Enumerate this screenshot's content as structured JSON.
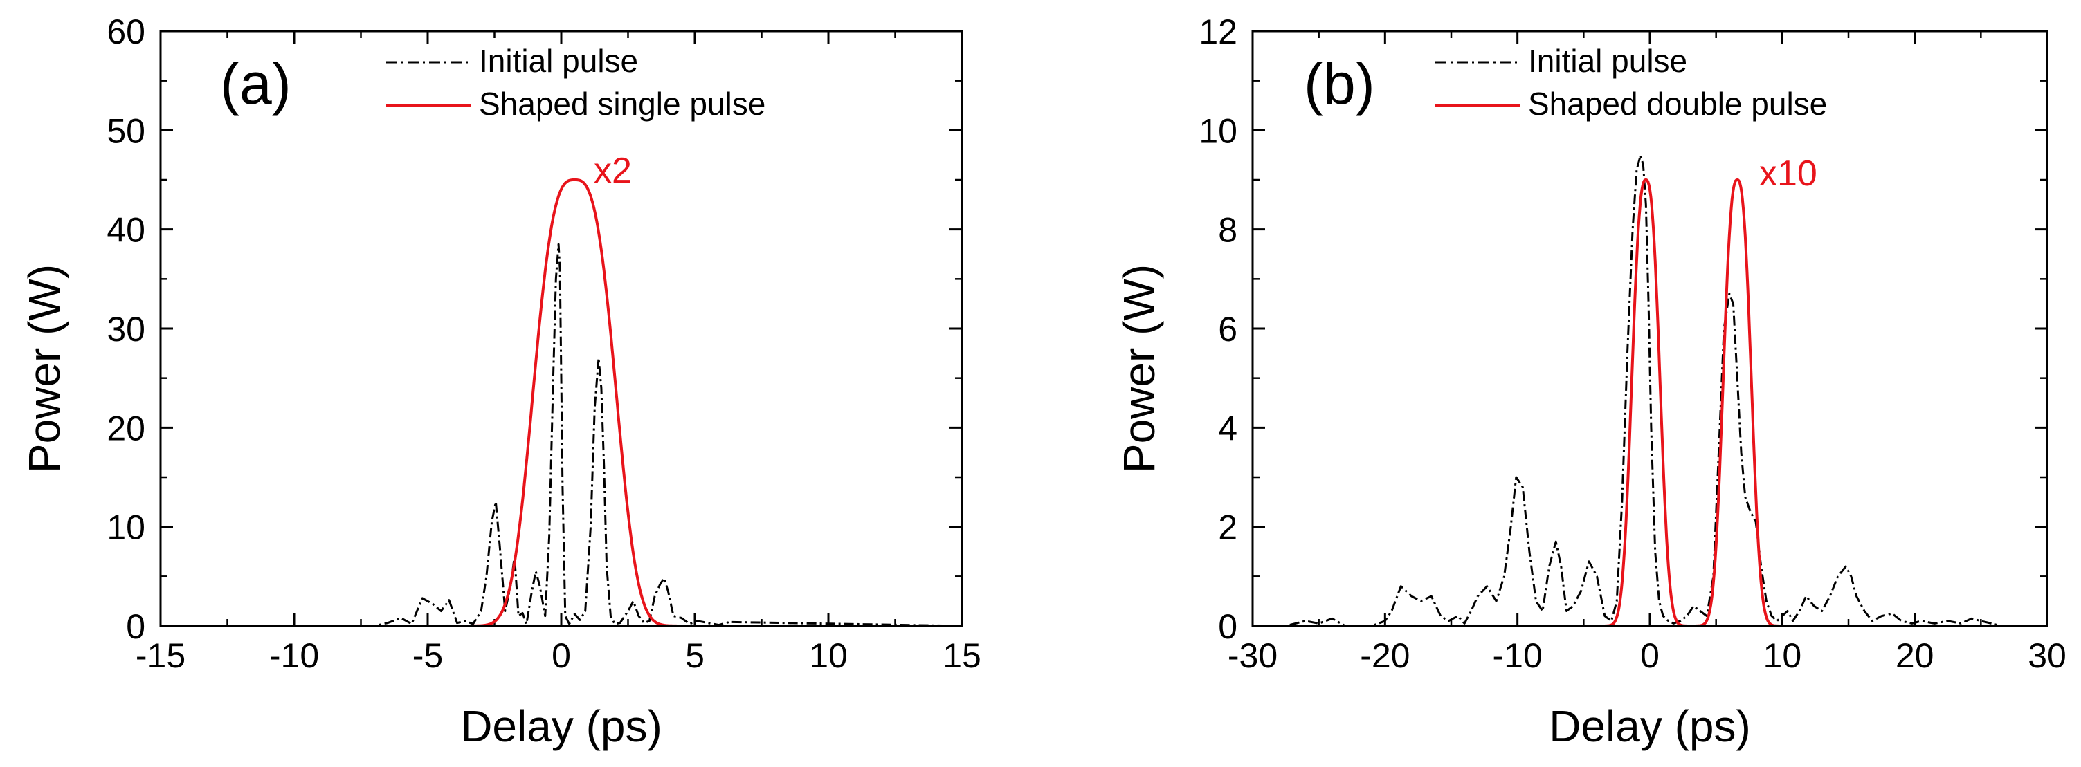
{
  "chart_data": [
    {
      "type": "line",
      "panel_label": "(a)",
      "xlabel": "Delay (ps)",
      "ylabel": "Power (W)",
      "xlim": [
        -15,
        15
      ],
      "ylim": [
        0,
        60
      ],
      "xticks": [
        -15,
        -10,
        -5,
        0,
        5,
        10,
        15
      ],
      "yticks": [
        0,
        10,
        20,
        30,
        40,
        50,
        60
      ],
      "xtick_labels": [
        "-15",
        "-10",
        "-5",
        "0",
        "5",
        "10",
        "15"
      ],
      "ytick_labels": [
        "0",
        "10",
        "20",
        "30",
        "40",
        "50",
        "60"
      ],
      "grid": false,
      "legend": "top",
      "annotation": {
        "text": "x2",
        "x": 2.7,
        "y": 45,
        "color": "#e8141b"
      },
      "series": [
        {
          "name": "Initial pulse",
          "color": "#000000",
          "style": "dashdot",
          "x": [
            -15,
            -7,
            -6.5,
            -6,
            -5.6,
            -5.2,
            -4.8,
            -4.5,
            -4.2,
            -3.9,
            -3.6,
            -3.3,
            -3.0,
            -2.8,
            -2.6,
            -2.45,
            -2.3,
            -2.1,
            -1.9,
            -1.75,
            -1.6,
            -1.45,
            -1.3,
            -1.1,
            -0.95,
            -0.8,
            -0.6,
            -0.45,
            -0.3,
            -0.2,
            -0.1,
            -0.05,
            0.05,
            0.15,
            0.3,
            0.5,
            0.7,
            0.9,
            1.1,
            1.25,
            1.4,
            1.5,
            1.6,
            1.7,
            1.85,
            2.0,
            2.2,
            2.5,
            2.7,
            2.9,
            3.1,
            3.3,
            3.5,
            3.7,
            3.85,
            4.0,
            4.2,
            4.5,
            4.8,
            5.1,
            5.5,
            5.9,
            6.3,
            15
          ],
          "values": [
            0,
            0,
            0.3,
            0.8,
            0.2,
            2.8,
            2.2,
            1.5,
            2.6,
            0.3,
            0.5,
            0.2,
            1.5,
            5.0,
            10.5,
            12.5,
            8.0,
            1.5,
            4.0,
            7.0,
            1.0,
            1.3,
            0.2,
            3.5,
            5.5,
            4.0,
            1.0,
            9.0,
            25.0,
            35.0,
            38.5,
            36.0,
            14.0,
            1.0,
            0.2,
            1.2,
            0.6,
            1.5,
            10.0,
            22.0,
            27.0,
            24.0,
            16.0,
            6.0,
            1.0,
            0.2,
            0.3,
            1.5,
            2.5,
            1.0,
            0.3,
            0.5,
            3.0,
            4.2,
            4.8,
            3.5,
            1.0,
            0.8,
            0.2,
            0.5,
            0.3,
            0.1,
            0.4,
            0
          ]
        },
        {
          "name": "Shaped single pulse",
          "color": "#e8141b",
          "style": "solid",
          "function": "flattened-gaussian",
          "peak": 45,
          "center": 0.5,
          "width": 1.8,
          "order": 1.5,
          "xrange": [
            -15,
            15
          ]
        }
      ]
    },
    {
      "type": "line",
      "panel_label": "(b)",
      "xlabel": "Delay (ps)",
      "ylabel": "Power (W)",
      "xlim": [
        -30,
        30
      ],
      "ylim": [
        0,
        12
      ],
      "xticks": [
        -30,
        -20,
        -10,
        0,
        10,
        20,
        30
      ],
      "yticks": [
        0,
        2,
        4,
        6,
        8,
        10,
        12
      ],
      "xtick_labels": [
        "-30",
        "-20",
        "-10",
        "0",
        "10",
        "20",
        "30"
      ],
      "ytick_labels": [
        "0",
        "2",
        "4",
        "6",
        "8",
        "10",
        "12"
      ],
      "grid": false,
      "legend": "top",
      "annotation": {
        "text": "x10",
        "x": 8.7,
        "y": 9.0,
        "color": "#e8141b"
      },
      "series": [
        {
          "name": "Initial pulse",
          "color": "#000000",
          "style": "dashdot",
          "x": [
            -30,
            -27.5,
            -26,
            -25,
            -24,
            -23,
            -21,
            -20,
            -19.5,
            -18.8,
            -18,
            -17.3,
            -16.5,
            -15.8,
            -15.2,
            -14.5,
            -14,
            -13.5,
            -13,
            -12.3,
            -11.6,
            -11,
            -10.5,
            -10.1,
            -9.6,
            -9.1,
            -8.6,
            -8.1,
            -7.6,
            -7.1,
            -6.7,
            -6.3,
            -5.8,
            -5.2,
            -4.6,
            -4.0,
            -3.4,
            -2.9,
            -2.5,
            -2.1,
            -1.7,
            -1.3,
            -1.0,
            -0.7,
            -0.5,
            -0.3,
            -0.1,
            0.1,
            0.4,
            0.7,
            1.0,
            1.4,
            1.8,
            2.3,
            2.8,
            3.3,
            3.8,
            4.3,
            4.8,
            5.2,
            5.6,
            6.0,
            6.3,
            6.6,
            6.9,
            7.2,
            7.6,
            8.0,
            8.4,
            8.8,
            9.2,
            9.6,
            10.0,
            10.4,
            10.8,
            11.3,
            11.8,
            12.4,
            13.0,
            13.6,
            14.2,
            14.8,
            15.2,
            15.6,
            16.2,
            16.8,
            17.5,
            18.3,
            19.0,
            19.8,
            20.5,
            21.5,
            22.5,
            23.5,
            24.3,
            25.0,
            25.8,
            26.5,
            30
          ],
          "values": [
            0,
            0,
            0.1,
            0.05,
            0.15,
            0,
            0,
            0.1,
            0.3,
            0.8,
            0.6,
            0.5,
            0.6,
            0.2,
            0.1,
            0.2,
            0.05,
            0.3,
            0.6,
            0.8,
            0.5,
            1.0,
            2.0,
            3.0,
            2.8,
            1.5,
            0.5,
            0.3,
            1.2,
            1.7,
            1.2,
            0.3,
            0.4,
            0.7,
            1.3,
            1.0,
            0.2,
            0.1,
            0.5,
            2.5,
            5.5,
            8.0,
            9.2,
            9.5,
            9.3,
            8.5,
            6.5,
            4.0,
            1.5,
            0.5,
            0.2,
            0.1,
            0.05,
            0.1,
            0.2,
            0.4,
            0.3,
            0.2,
            1.0,
            3.5,
            6.0,
            6.7,
            6.5,
            5.0,
            3.5,
            2.6,
            2.3,
            2.1,
            1.2,
            0.5,
            0.2,
            0.1,
            0.2,
            0.3,
            0.1,
            0.3,
            0.6,
            0.4,
            0.3,
            0.6,
            1.0,
            1.2,
            1.0,
            0.6,
            0.3,
            0.1,
            0.2,
            0.25,
            0.1,
            0.05,
            0.1,
            0.05,
            0.1,
            0.05,
            0.15,
            0.1,
            0.05,
            0,
            0
          ]
        },
        {
          "name": "Shaped double pulse",
          "color": "#e8141b",
          "style": "solid",
          "function": "double-gaussian",
          "peaks": [
            {
              "center": -0.3,
              "height": 9.0,
              "width": 1.3
            },
            {
              "center": 6.6,
              "height": 9.0,
              "width": 1.3
            }
          ],
          "order": 1.3,
          "xrange": [
            -30,
            30
          ]
        }
      ]
    }
  ]
}
